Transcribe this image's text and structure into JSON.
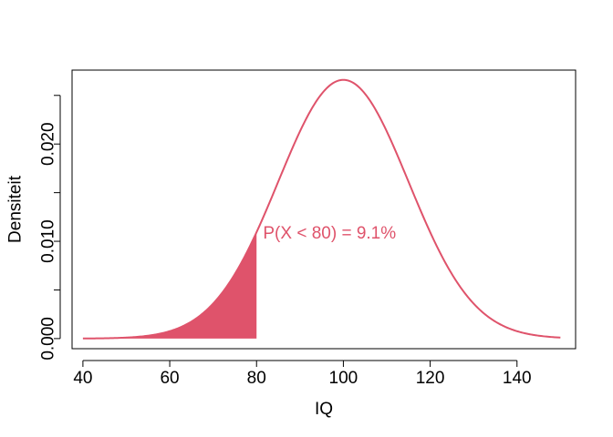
{
  "chart_data": {
    "type": "area",
    "title": "",
    "xlabel": "IQ",
    "ylabel": "Densiteit",
    "xlim": [
      37.5,
      153.5
    ],
    "ylim": [
      -0.00104,
      0.0276
    ],
    "x_ticks": [
      40,
      60,
      80,
      100,
      120,
      140
    ],
    "x_tick_labels": [
      "40",
      "60",
      "80",
      "100",
      "120",
      "140"
    ],
    "y_ticks": [
      0.0,
      0.005,
      0.01,
      0.015,
      0.02,
      0.025
    ],
    "y_tick_labels": [
      "0.000",
      "",
      "0.010",
      "",
      "0.020",
      ""
    ],
    "grid": false,
    "legend": "none",
    "distribution": {
      "name": "normal",
      "mean": 100,
      "sd": 15
    },
    "curve_range": [
      40,
      150
    ],
    "shaded_region": {
      "from": 40,
      "to": 80
    },
    "series": [
      {
        "x": [
          40,
          45,
          50,
          55,
          60,
          65,
          70,
          75,
          80,
          85,
          90,
          95,
          100,
          105,
          110,
          115,
          120,
          125,
          130,
          135,
          140,
          145,
          150
        ],
        "values": [
          8.9e-06,
          3.16e-05,
          9.97e-05,
          0.000295,
          0.00076,
          0.00175,
          0.0036,
          0.00664,
          0.01093,
          0.01613,
          0.0213,
          0.02516,
          0.0266,
          0.02516,
          0.0213,
          0.01613,
          0.01093,
          0.00664,
          0.0036,
          0.00175,
          0.00076,
          0.000295,
          9.97e-05
        ]
      }
    ],
    "annotation": {
      "text": "P(X < 80) = 9.1%",
      "x": 81.5,
      "y": 0.0108
    },
    "colors": {
      "curve": "#DF536B",
      "fill": "#DF536B",
      "annotation": "#DF536B",
      "axis": "#000000"
    }
  }
}
